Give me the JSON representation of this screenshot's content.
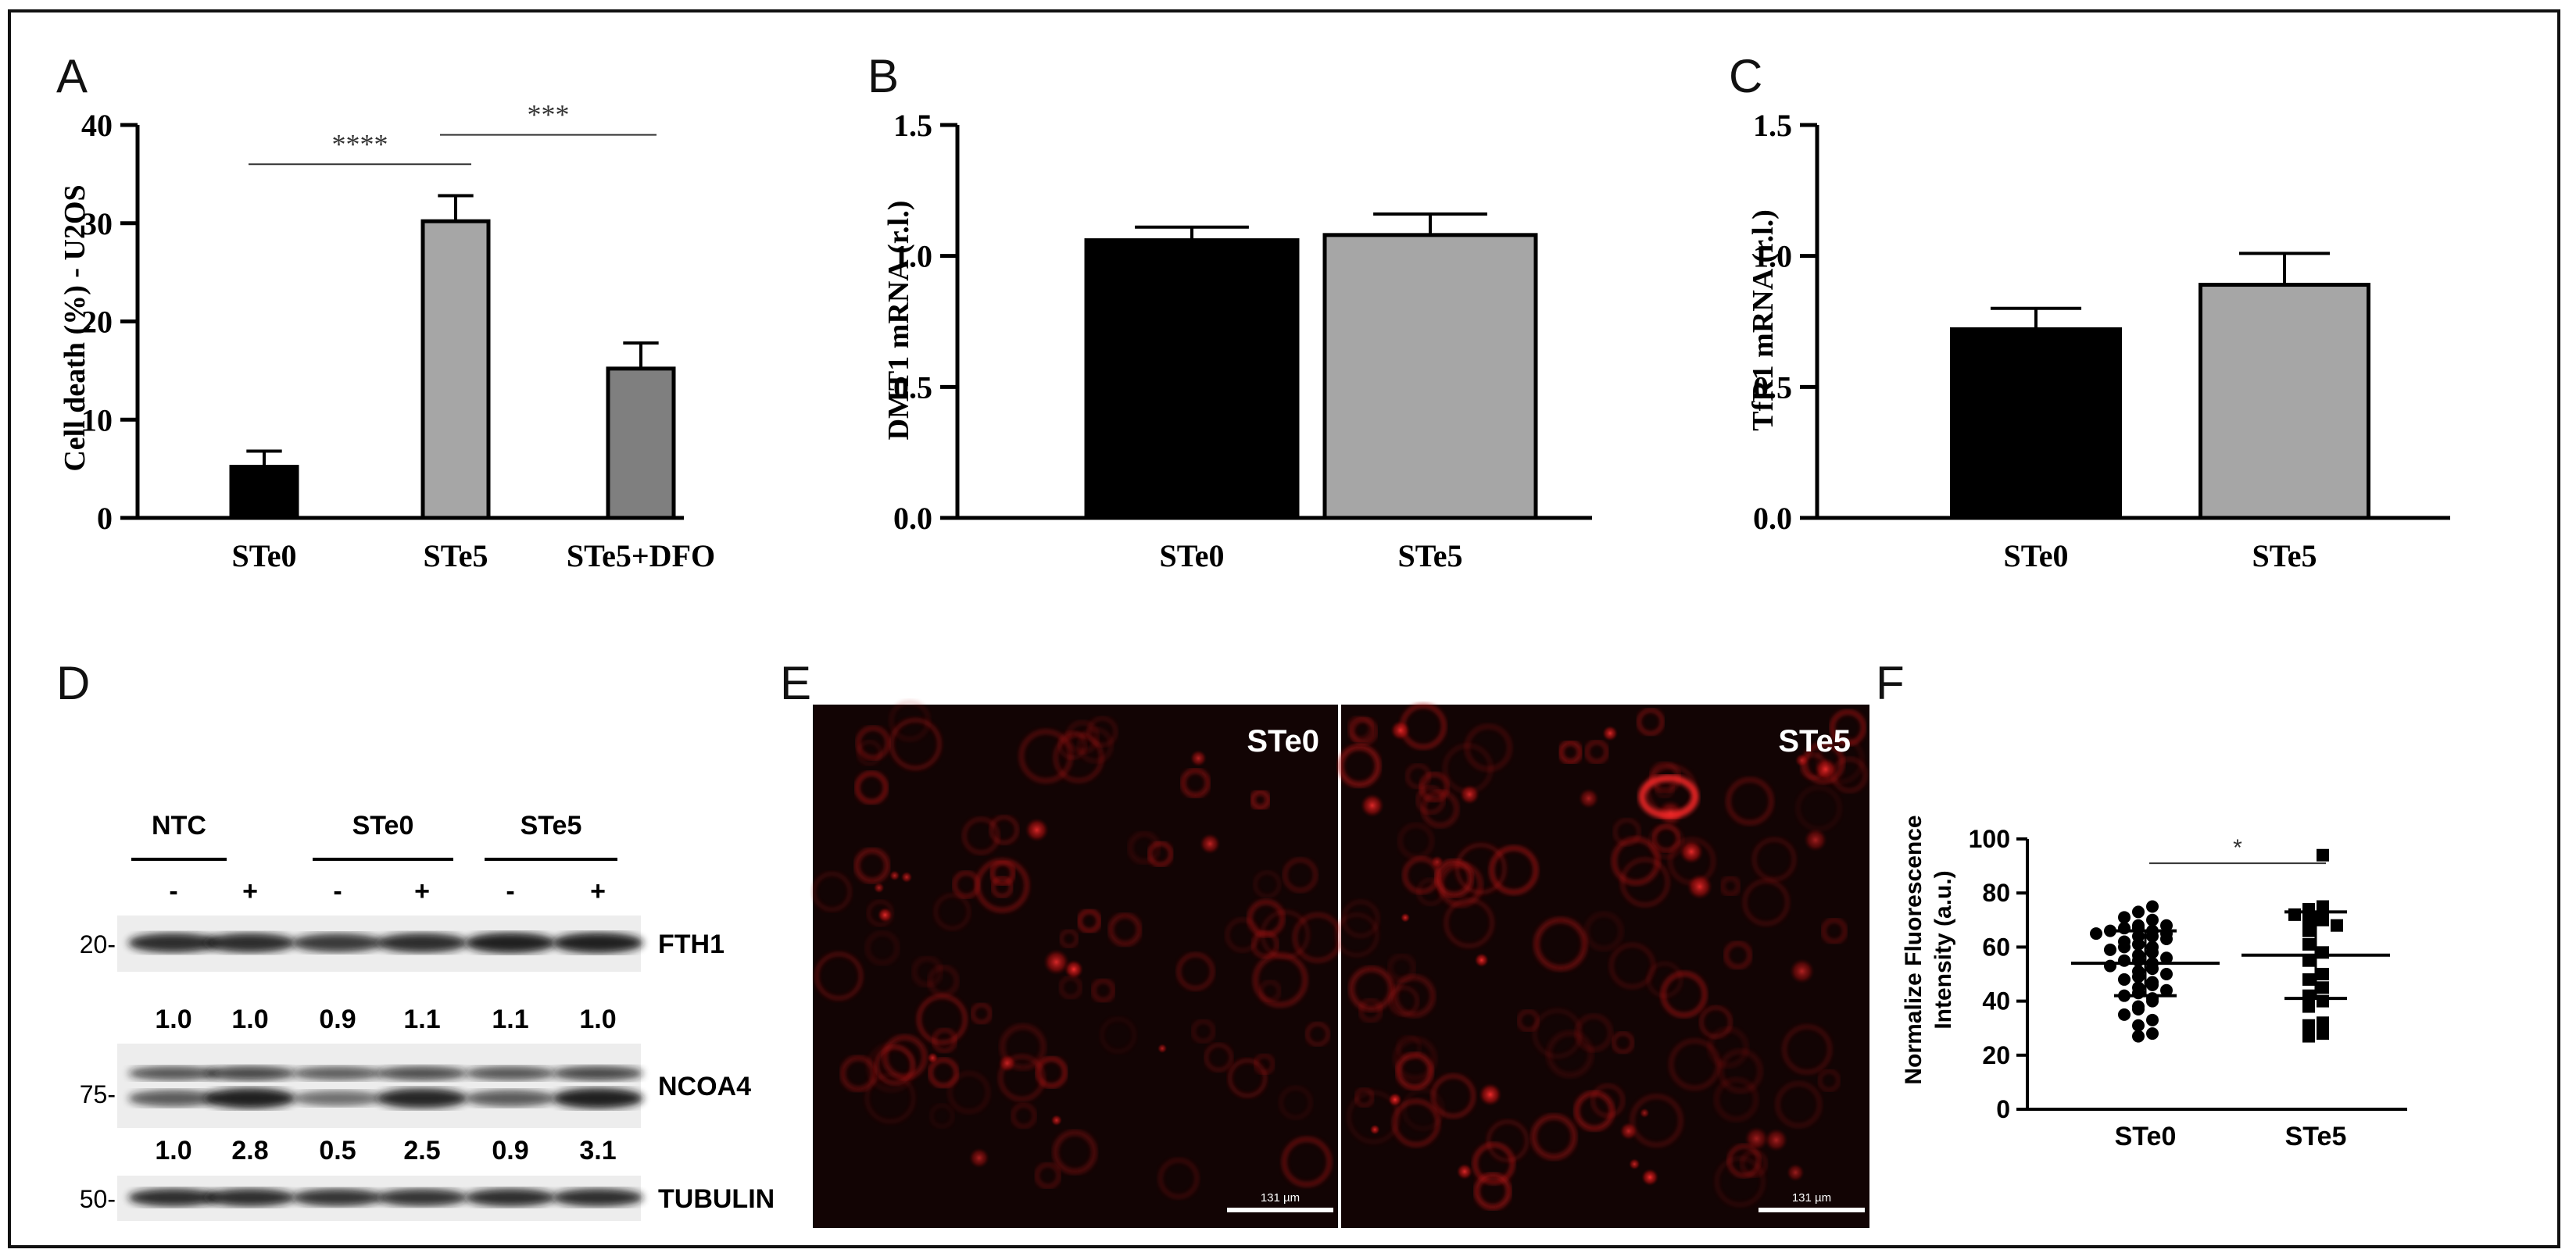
{
  "colors": {
    "black": "#000000",
    "light_gray": "#a6a6a6",
    "dark_gray": "#7f7f7f",
    "micro_bg": "#120404",
    "micro_cell": "#d01515"
  },
  "panels": {
    "A": {
      "letter": "A"
    },
    "B": {
      "letter": "B"
    },
    "C": {
      "letter": "C"
    },
    "D": {
      "letter": "D"
    },
    "E": {
      "letter": "E"
    },
    "F": {
      "letter": "F"
    }
  },
  "chart_data": [
    {
      "id": "A",
      "type": "bar",
      "ylabel": "Cell death (%) - U2OS",
      "ylim": [
        0,
        40
      ],
      "yticks": [
        0,
        10,
        20,
        30,
        40
      ],
      "categories": [
        "STe0",
        "STe5",
        "STe5+DFO"
      ],
      "values": [
        5.2,
        30.2,
        15.2
      ],
      "errors": [
        1.6,
        2.6,
        2.6
      ],
      "bar_colors": [
        "#000000",
        "#a6a6a6",
        "#7f7f7f"
      ],
      "significance": [
        {
          "from": 0,
          "to": 1,
          "label": "****",
          "y": 36.0
        },
        {
          "from": 1,
          "to": 2,
          "label": "***",
          "y": 39.0
        }
      ]
    },
    {
      "id": "B",
      "type": "bar",
      "ylabel": "DMT1 mRNA (r.l.)",
      "ylim": [
        0,
        1.5
      ],
      "yticks": [
        "0.0",
        "0.5",
        "1.0",
        "1.5"
      ],
      "categories": [
        "STe0",
        "STe5"
      ],
      "values": [
        1.06,
        1.08
      ],
      "errors": [
        0.05,
        0.08
      ],
      "bar_colors": [
        "#000000",
        "#a6a6a6"
      ]
    },
    {
      "id": "C",
      "type": "bar",
      "ylabel": "TfR1 mRNA (r.l.)",
      "ylim": [
        0,
        1.5
      ],
      "yticks": [
        "0.0",
        "0.5",
        "1.0",
        "1.5"
      ],
      "categories": [
        "STe0",
        "STe5"
      ],
      "values": [
        0.72,
        0.89
      ],
      "errors": [
        0.08,
        0.12
      ],
      "bar_colors": [
        "#000000",
        "#a6a6a6"
      ]
    },
    {
      "id": "F",
      "type": "scatter",
      "ylabel": [
        "Normalize Fluorescence",
        "Intensity (a.u.)"
      ],
      "ylim": [
        0,
        100
      ],
      "yticks": [
        0,
        20,
        40,
        60,
        80,
        100
      ],
      "categories": [
        "STe0",
        "STe5"
      ],
      "series": [
        {
          "marker": "circle",
          "mean": 54,
          "sd": 12,
          "values": [
            75,
            73,
            71,
            70,
            68,
            68,
            67,
            67,
            66,
            66,
            65,
            65,
            64,
            64,
            63,
            62,
            61,
            60,
            60,
            59,
            58,
            57,
            56,
            55,
            55,
            54,
            53,
            52,
            51,
            50,
            49,
            48,
            47,
            46,
            45,
            44,
            43,
            42,
            41,
            40,
            38,
            37,
            35,
            33,
            31,
            28,
            27
          ]
        },
        {
          "marker": "square",
          "mean": 57,
          "sd": 16,
          "values": [
            94,
            75,
            74,
            73,
            72,
            71,
            70,
            69,
            68,
            66,
            61,
            58,
            55,
            50,
            48,
            45,
            42,
            40,
            38,
            32,
            31,
            28,
            27
          ]
        }
      ],
      "significance": [
        {
          "from": 0,
          "to": 1,
          "label": "*",
          "y": 91
        }
      ]
    }
  ],
  "western_blot": {
    "groups": [
      {
        "label": "NTC"
      },
      {
        "label": "STe0"
      },
      {
        "label": "STe5"
      }
    ],
    "treatment_labels": [
      "-",
      "+",
      "-",
      "+",
      "-",
      "+"
    ],
    "rows": [
      {
        "protein": "FTH1",
        "marker": "20-",
        "quant": [
          "1.0",
          "1.0",
          "0.9",
          "1.1",
          "1.1",
          "1.0"
        ]
      },
      {
        "protein": "NCOA4",
        "marker": "75-",
        "quant": [
          "1.0",
          "2.8",
          "0.5",
          "2.5",
          "0.9",
          "3.1"
        ]
      },
      {
        "protein": "TUBULIN",
        "marker": "50-"
      }
    ]
  },
  "micrographs": [
    {
      "label": "STe0",
      "scalebar": "131 µm"
    },
    {
      "label": "STe5",
      "scalebar": "131 µm"
    }
  ]
}
